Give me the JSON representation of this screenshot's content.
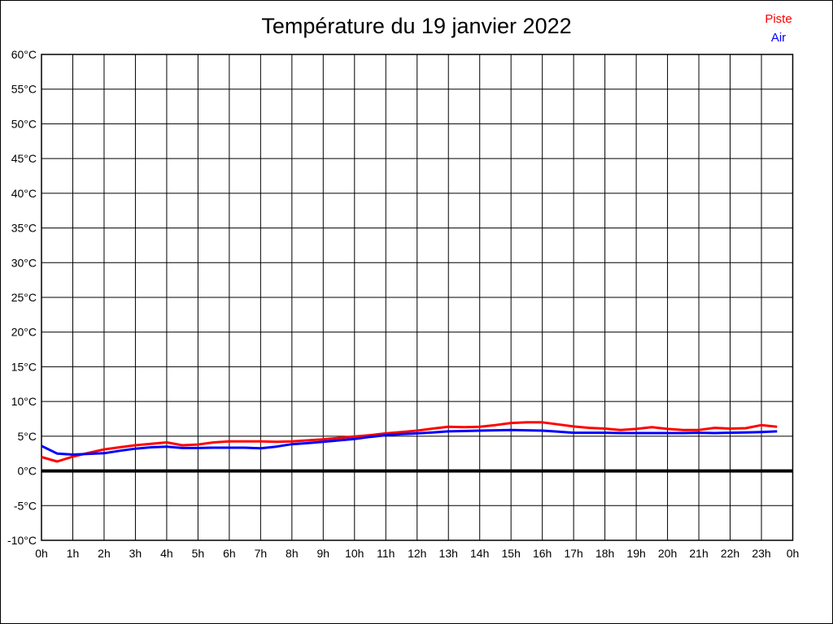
{
  "chart_data": {
    "type": "line",
    "title": "Température du 19 janvier 2022",
    "xlabel": "",
    "ylabel": "",
    "xlim_hours": [
      0,
      24
    ],
    "ylim": [
      -10,
      60
    ],
    "grid": true,
    "zero_line_at": 0,
    "x_tick_labels": [
      "0h",
      "1h",
      "2h",
      "3h",
      "4h",
      "5h",
      "6h",
      "7h",
      "8h",
      "9h",
      "10h",
      "11h",
      "12h",
      "13h",
      "14h",
      "15h",
      "16h",
      "17h",
      "18h",
      "19h",
      "20h",
      "21h",
      "22h",
      "23h",
      "0h"
    ],
    "y_ticks": [
      60,
      55,
      50,
      45,
      40,
      35,
      30,
      25,
      20,
      15,
      10,
      5,
      0,
      -5,
      -10
    ],
    "y_tick_labels": [
      "60°C",
      "55°C",
      "50°C",
      "45°C",
      "40°C",
      "35°C",
      "30°C",
      "25°C",
      "20°C",
      "15°C",
      "10°C",
      "5°C",
      "0°C",
      "-5°C",
      "-10°C"
    ],
    "legend_position": "top-right",
    "series": [
      {
        "name": "Piste",
        "color": "#ff0000",
        "x_start": 0,
        "x_step": 0.5,
        "values": [
          2.0,
          1.35,
          2.05,
          2.6,
          3.1,
          3.4,
          3.7,
          3.9,
          4.1,
          3.7,
          3.8,
          4.1,
          4.25,
          4.25,
          4.25,
          4.2,
          4.25,
          4.4,
          4.55,
          4.75,
          4.95,
          5.15,
          5.4,
          5.6,
          5.8,
          6.1,
          6.35,
          6.3,
          6.35,
          6.6,
          6.9,
          7.0,
          7.0,
          6.7,
          6.4,
          6.2,
          6.1,
          5.9,
          6.05,
          6.3,
          6.05,
          5.9,
          5.9,
          6.2,
          6.1,
          6.15,
          6.6,
          6.35
        ]
      },
      {
        "name": "Air",
        "color": "#0000ff",
        "x_start": 0,
        "x_step": 0.5,
        "values": [
          3.6,
          2.5,
          2.35,
          2.45,
          2.55,
          2.9,
          3.2,
          3.4,
          3.5,
          3.3,
          3.3,
          3.35,
          3.35,
          3.35,
          3.25,
          3.5,
          3.85,
          4.0,
          4.2,
          4.4,
          4.6,
          4.9,
          5.15,
          5.3,
          5.4,
          5.55,
          5.7,
          5.75,
          5.8,
          5.85,
          5.9,
          5.85,
          5.8,
          5.65,
          5.5,
          5.5,
          5.5,
          5.45,
          5.45,
          5.45,
          5.45,
          5.45,
          5.5,
          5.45,
          5.5,
          5.55,
          5.6,
          5.7
        ]
      }
    ]
  }
}
